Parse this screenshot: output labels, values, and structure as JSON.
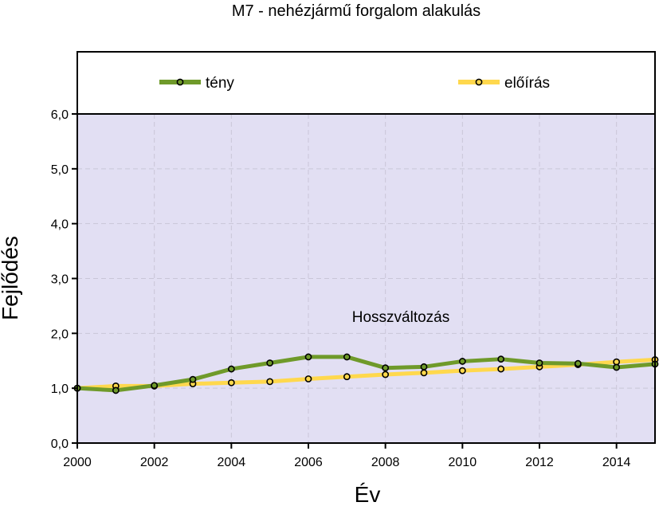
{
  "chart_data": {
    "type": "line",
    "title": "M7 - nehézjármű forgalom alakulás",
    "xlabel": "Év",
    "ylabel": "Fejlődés",
    "annotation": "Hosszváltozás",
    "xlim": [
      2000,
      2015
    ],
    "ylim": [
      0,
      6
    ],
    "x_ticks": [
      2000,
      2002,
      2004,
      2006,
      2008,
      2010,
      2012,
      2014
    ],
    "x_tick_labels": [
      "2000",
      "2002",
      "2004",
      "2006",
      "2008",
      "2010",
      "2012",
      "2014"
    ],
    "y_ticks": [
      0,
      1,
      2,
      3,
      4,
      5,
      6
    ],
    "y_tick_labels": [
      "0,0",
      "1,0",
      "2,0",
      "3,0",
      "4,0",
      "5,0",
      "6,0"
    ],
    "grid": true,
    "legend_position": "top",
    "background_color": "#e2dff3",
    "x": [
      2000,
      2001,
      2002,
      2003,
      2004,
      2005,
      2006,
      2007,
      2008,
      2009,
      2010,
      2011,
      2012,
      2013,
      2014,
      2015
    ],
    "series": [
      {
        "name": "tény",
        "color": "#6f9a2a",
        "values": [
          1.0,
          0.96,
          1.05,
          1.16,
          1.35,
          1.46,
          1.57,
          1.57,
          1.37,
          1.39,
          1.49,
          1.53,
          1.46,
          1.45,
          1.38,
          1.44
        ]
      },
      {
        "name": "előírás",
        "color": "#ffd84d",
        "values": [
          1.0,
          1.04,
          1.04,
          1.08,
          1.1,
          1.12,
          1.17,
          1.21,
          1.25,
          1.28,
          1.32,
          1.35,
          1.39,
          1.43,
          1.48,
          1.52
        ]
      }
    ]
  }
}
